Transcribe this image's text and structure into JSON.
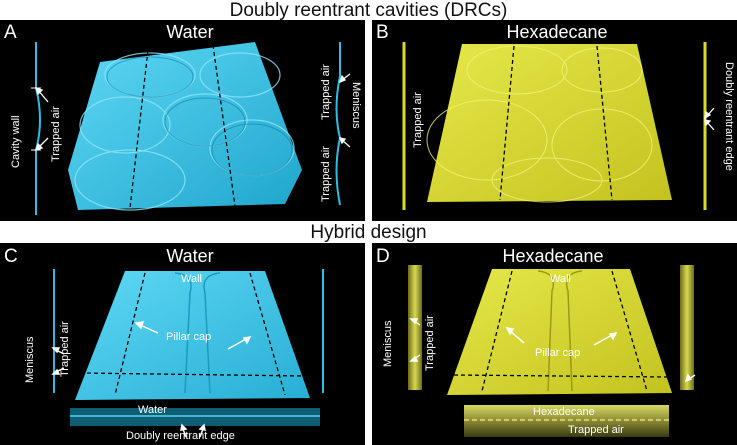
{
  "sections": {
    "top_title": "Doubly reentrant cavities (DRCs)",
    "bottom_title": "Hybrid design"
  },
  "panels": {
    "A": {
      "letter": "A",
      "title": "Water",
      "labels": {
        "cavity_wall": "Cavity wall",
        "trapped_air_left": "Trapped air",
        "trapped_air_right_top": "Trapped air",
        "meniscus": "Meniscus",
        "trapped_air_right_bottom": "Trapped air"
      },
      "color": "#33c3e6"
    },
    "B": {
      "letter": "B",
      "title": "Hexadecane",
      "labels": {
        "trapped_air": "Trapped air",
        "doubly_reentrant_edge": "Doubly reentrant edge"
      },
      "color": "#d9dc2e"
    },
    "C": {
      "letter": "C",
      "title": "Water",
      "labels": {
        "wall": "Wall",
        "pillar_cap": "Pillar cap",
        "meniscus": "Meniscus",
        "trapped_air": "Trapped air",
        "water": "Water",
        "doubly_reentrant_edge": "Doubly reentrant edge"
      },
      "color": "#33c3e6"
    },
    "D": {
      "letter": "D",
      "title": "Hexadecane",
      "labels": {
        "wall": "Wall",
        "pillar_cap": "Pillar cap",
        "meniscus": "Meniscus",
        "trapped_air": "Trapped air",
        "hexadecane": "Hexadecane",
        "trapped_air_bottom": "Trapped air"
      },
      "color": "#d9dc2e"
    }
  }
}
